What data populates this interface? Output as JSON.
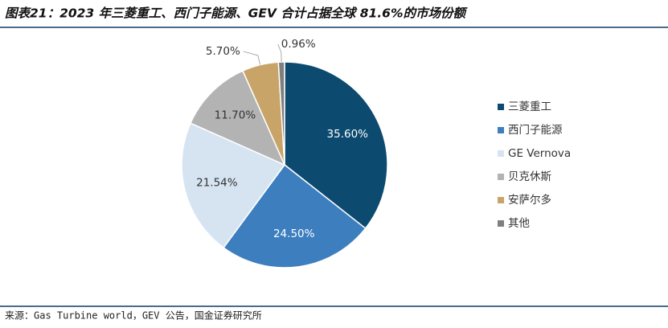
{
  "chart_data": {
    "type": "pie",
    "title": "图表21：2023 年三菱重工、西门子能源、GEV 合计占据全球 81.6%的市场份额",
    "source": "来源：Gas Turbine world，GEV 公告，国金证券研究所",
    "categories": [
      "三菱重工",
      "西门子能源",
      "GE Vernova",
      "贝克休斯",
      "安萨尔多",
      "其他"
    ],
    "values": [
      35.6,
      24.5,
      21.54,
      11.7,
      5.7,
      0.96
    ],
    "value_labels": [
      "35.60%",
      "24.50%",
      "21.54%",
      "11.70%",
      "5.70%",
      "0.96%"
    ],
    "colors": [
      "#0d4a70",
      "#3d7ebf",
      "#d6e4f2",
      "#b3b3b3",
      "#c8a468",
      "#7f7f7f"
    ],
    "legend": "right"
  }
}
